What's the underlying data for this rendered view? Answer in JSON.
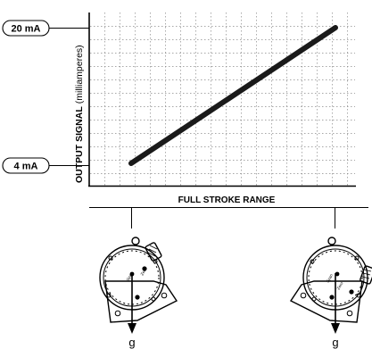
{
  "figure": {
    "y_axis_label_bold": "OUTPUT SIGNAL",
    "y_axis_label_unit": "(milliamperes)",
    "x_axis_label": "FULL STROKE RANGE",
    "top_tick_label": "20 mA",
    "bottom_tick_label": "4 mA",
    "positioner_left": {
      "span_label": "Span",
      "zero_label": "Zero",
      "gravity_label": "g"
    },
    "positioner_right": {
      "span_label": "Span",
      "zero_label": "Zero",
      "gravity_label": "g"
    }
  },
  "chart_data": {
    "type": "line",
    "xlabel": "FULL STROKE RANGE",
    "ylabel": "OUTPUT SIGNAL (milliamperes)",
    "y_ticks": [
      "4 mA",
      "20 mA"
    ],
    "grid": true,
    "series": [
      {
        "x": [
          0,
          100
        ],
        "y": [
          4,
          20
        ]
      }
    ]
  }
}
